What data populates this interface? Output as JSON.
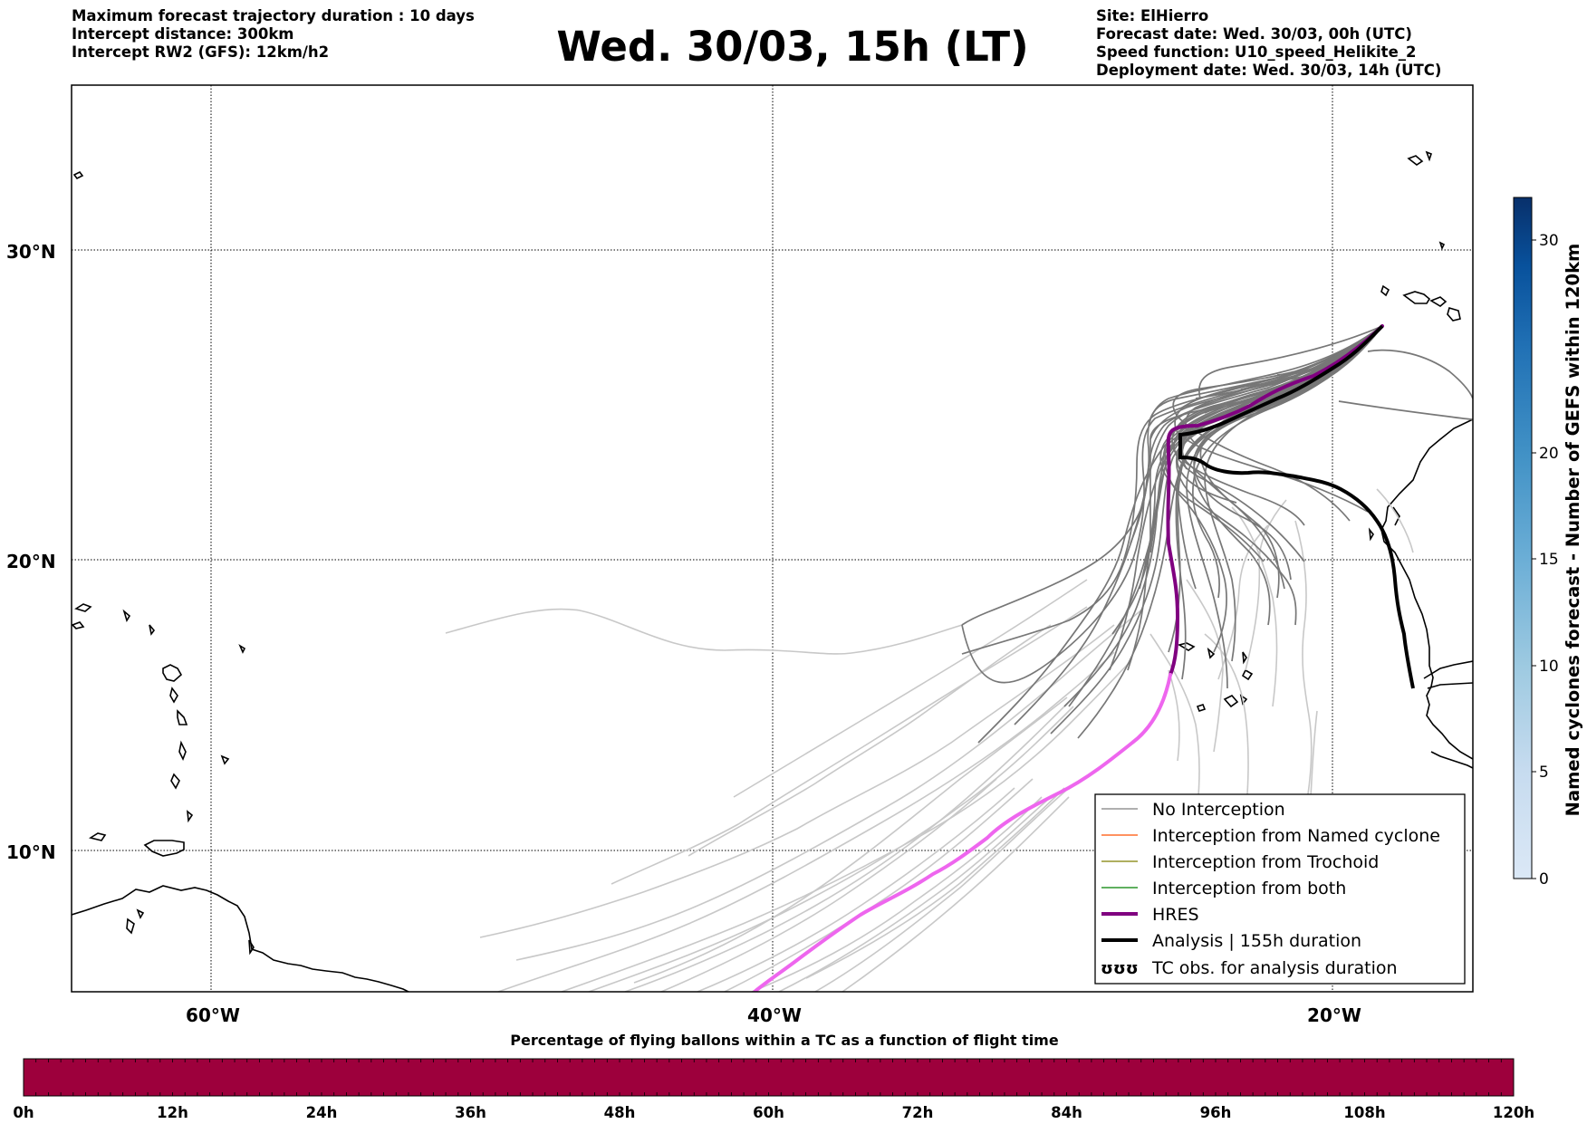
{
  "header_left": [
    "Maximum forecast trajectory duration : 10 days",
    "Intercept distance: 300km",
    "Intercept RW2 (GFS):  12km/h2"
  ],
  "title": "Wed. 30/03, 15h (LT)",
  "header_right": [
    "Site: ElHierro",
    "Forecast date: Wed. 30/03, 00h (UTC)",
    "Speed function: U10_speed_Helikite_2",
    "Deployment date: Wed. 30/03, 14h (UTC)"
  ],
  "map": {
    "lat_ticks": [
      "30°N",
      "20°N",
      "10°N"
    ],
    "lon_ticks": [
      "60°W",
      "40°W",
      "20°W"
    ],
    "grid": "dotted"
  },
  "legend": {
    "placement": "lower-right",
    "items": [
      {
        "label": "No Interception",
        "color": "#7f7f7f"
      },
      {
        "label": "Interception from Named cyclone",
        "color": "#ff5000"
      },
      {
        "label": "Interception from Trochoid",
        "color": "#7f7f00"
      },
      {
        "label": "Interception from both",
        "color": "#008000"
      },
      {
        "label": "HRES",
        "color": "#800080"
      },
      {
        "label": "Analysis | 155h duration",
        "color": "#000000"
      },
      {
        "label": "TC obs. for analysis duration",
        "color": "#000000",
        "symbol": "ʊʊʊ"
      }
    ]
  },
  "colorbar_right": {
    "label": "Named cyclones forecast - Number of GEFS within 120km",
    "ticks": [
      "0",
      "5",
      "10",
      "15",
      "20",
      "30"
    ],
    "range": [
      0,
      32
    ],
    "colors": [
      "#dbe8f6",
      "#c6dbef",
      "#9ecae1",
      "#6baed6",
      "#4292c6",
      "#2171b5",
      "#08519c",
      "#08306b"
    ]
  },
  "colorbar_bottom": {
    "title": "Percentage of flying ballons within a TC as a function of flight time",
    "ticks": [
      "0h",
      "12h",
      "24h",
      "36h",
      "48h",
      "60h",
      "72h",
      "84h",
      "96h",
      "108h",
      "120h"
    ],
    "color": "#9d003c"
  }
}
